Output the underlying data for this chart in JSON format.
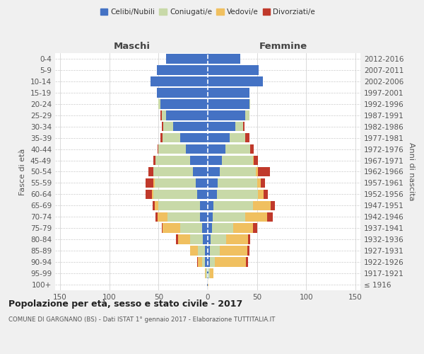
{
  "age_groups": [
    "100+",
    "95-99",
    "90-94",
    "85-89",
    "80-84",
    "75-79",
    "70-74",
    "65-69",
    "60-64",
    "55-59",
    "50-54",
    "45-49",
    "40-44",
    "35-39",
    "30-34",
    "25-29",
    "20-24",
    "15-19",
    "10-14",
    "5-9",
    "0-4"
  ],
  "birth_years": [
    "≤ 1916",
    "1917-1921",
    "1922-1926",
    "1927-1931",
    "1932-1936",
    "1937-1941",
    "1942-1946",
    "1947-1951",
    "1952-1956",
    "1957-1961",
    "1962-1966",
    "1967-1971",
    "1972-1976",
    "1977-1981",
    "1982-1986",
    "1987-1991",
    "1992-1996",
    "1997-2001",
    "2002-2006",
    "2007-2011",
    "2012-2016"
  ],
  "male_celibe": [
    1,
    1,
    3,
    3,
    5,
    6,
    8,
    8,
    11,
    12,
    15,
    18,
    22,
    28,
    35,
    42,
    48,
    52,
    58,
    52,
    42
  ],
  "male_coniugato": [
    0,
    1,
    3,
    7,
    13,
    22,
    33,
    42,
    44,
    42,
    40,
    35,
    28,
    18,
    10,
    5,
    2,
    0,
    0,
    0,
    0
  ],
  "male_vedovo": [
    0,
    1,
    4,
    8,
    12,
    18,
    10,
    4,
    2,
    1,
    0,
    0,
    0,
    0,
    0,
    0,
    0,
    0,
    0,
    0,
    0
  ],
  "male_divorziato": [
    0,
    0,
    1,
    0,
    2,
    1,
    2,
    2,
    6,
    8,
    5,
    2,
    1,
    2,
    2,
    1,
    0,
    0,
    0,
    0,
    0
  ],
  "female_celibe": [
    0,
    1,
    2,
    2,
    3,
    4,
    5,
    6,
    9,
    10,
    12,
    14,
    18,
    22,
    28,
    38,
    42,
    42,
    56,
    52,
    33
  ],
  "female_coniugato": [
    0,
    1,
    5,
    10,
    16,
    22,
    33,
    40,
    42,
    40,
    37,
    32,
    25,
    16,
    8,
    4,
    1,
    0,
    0,
    0,
    0
  ],
  "female_vedovo": [
    1,
    4,
    32,
    28,
    22,
    20,
    22,
    18,
    6,
    4,
    2,
    1,
    0,
    0,
    0,
    0,
    0,
    0,
    0,
    0,
    0
  ],
  "female_divorziato": [
    0,
    0,
    2,
    2,
    2,
    4,
    6,
    4,
    4,
    4,
    12,
    4,
    4,
    4,
    1,
    0,
    0,
    0,
    0,
    0,
    0
  ],
  "color_celibe": "#4472C4",
  "color_coniugato": "#c8d9a8",
  "color_vedovo": "#f0c060",
  "color_divorziato": "#C0392B",
  "title": "Popolazione per età, sesso e stato civile - 2017",
  "subtitle": "COMUNE DI GARGNANO (BS) - Dati ISTAT 1° gennaio 2017 - Elaborazione TUTTITALIA.IT",
  "xlabel_left": "Maschi",
  "xlabel_right": "Femmine",
  "ylabel_left": "Fasce di età",
  "ylabel_right": "Anni di nascita",
  "bg_color": "#f0f0f0",
  "plot_bg_color": "#ffffff",
  "xlim": 155,
  "legend_labels": [
    "Celibi/Nubili",
    "Coniugati/e",
    "Vedovi/e",
    "Divorziati/e"
  ]
}
